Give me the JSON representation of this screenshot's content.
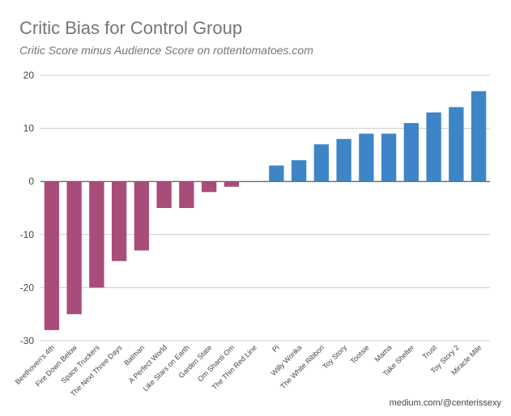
{
  "title": "Critic Bias for Control Group",
  "subtitle": "Critic Score minus Audience Score on rottentomatoes.com",
  "credit": "medium.com/@centerissexy",
  "colors": {
    "negative": "#A84D7A",
    "positive": "#3D85C6",
    "grid": "#CCCCCC",
    "axis": "#333333",
    "text": "#444444"
  },
  "chart_data": {
    "type": "bar",
    "title": "Critic Bias for Control Group",
    "subtitle": "Critic Score minus Audience Score on rottentomatoes.com",
    "categories": [
      "Beethoven's 4th",
      "Fire Down Below",
      "Space Truckers",
      "The Next Three Days",
      "Batman",
      "A Perfect World",
      "Like Stars on Earth",
      "Garden State",
      "Om Shanti Om",
      "The Thin Red Line",
      "Pi",
      "Willy Wonka",
      "The White Ribbon",
      "Toy Story",
      "Tootsie",
      "Mama",
      "Take Shelter",
      "Trust",
      "Toy Story 2",
      "Miracle Mile"
    ],
    "values": [
      -28,
      -25,
      -20,
      -15,
      -13,
      -5,
      -5,
      -2,
      -1,
      0,
      3,
      4,
      7,
      8,
      9,
      9,
      11,
      13,
      14,
      17
    ],
    "ylim": [
      -30,
      20
    ],
    "yticks": [
      20,
      10,
      0,
      -10,
      -20,
      -30
    ],
    "grid": true,
    "legend": "none"
  }
}
